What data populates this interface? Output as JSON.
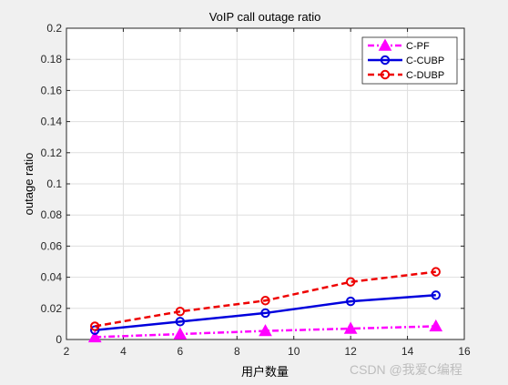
{
  "chart_data": {
    "type": "line",
    "title": "VoIP call outage ratio",
    "xlabel": "用户数量",
    "ylabel": "outage ratio",
    "xlim": [
      2,
      16
    ],
    "ylim": [
      0,
      0.2
    ],
    "xticks": [
      "2",
      "4",
      "6",
      "8",
      "10",
      "12",
      "14",
      "16"
    ],
    "yticks": [
      "0",
      "0.02",
      "0.04",
      "0.06",
      "0.08",
      "0.1",
      "0.12",
      "0.14",
      "0.16",
      "0.18",
      "0.2"
    ],
    "grid": true,
    "legend_position": "top-right",
    "x": [
      3,
      6,
      9,
      12,
      15
    ],
    "series": [
      {
        "name": "C-PF",
        "values": [
          0.0015,
          0.0035,
          0.0055,
          0.007,
          0.0085
        ],
        "color": "#ff00ff",
        "marker": "triangle",
        "dash": "dash-dot"
      },
      {
        "name": "C-CUBP",
        "values": [
          0.006,
          0.0115,
          0.017,
          0.0245,
          0.0285
        ],
        "color": "#0000dd",
        "marker": "circle",
        "dash": "solid"
      },
      {
        "name": "C-DUBP",
        "values": [
          0.0085,
          0.018,
          0.025,
          0.037,
          0.0435
        ],
        "color": "#ee0000",
        "marker": "circle",
        "dash": "dashed"
      }
    ]
  },
  "watermark": "CSDN @我爱C编程"
}
